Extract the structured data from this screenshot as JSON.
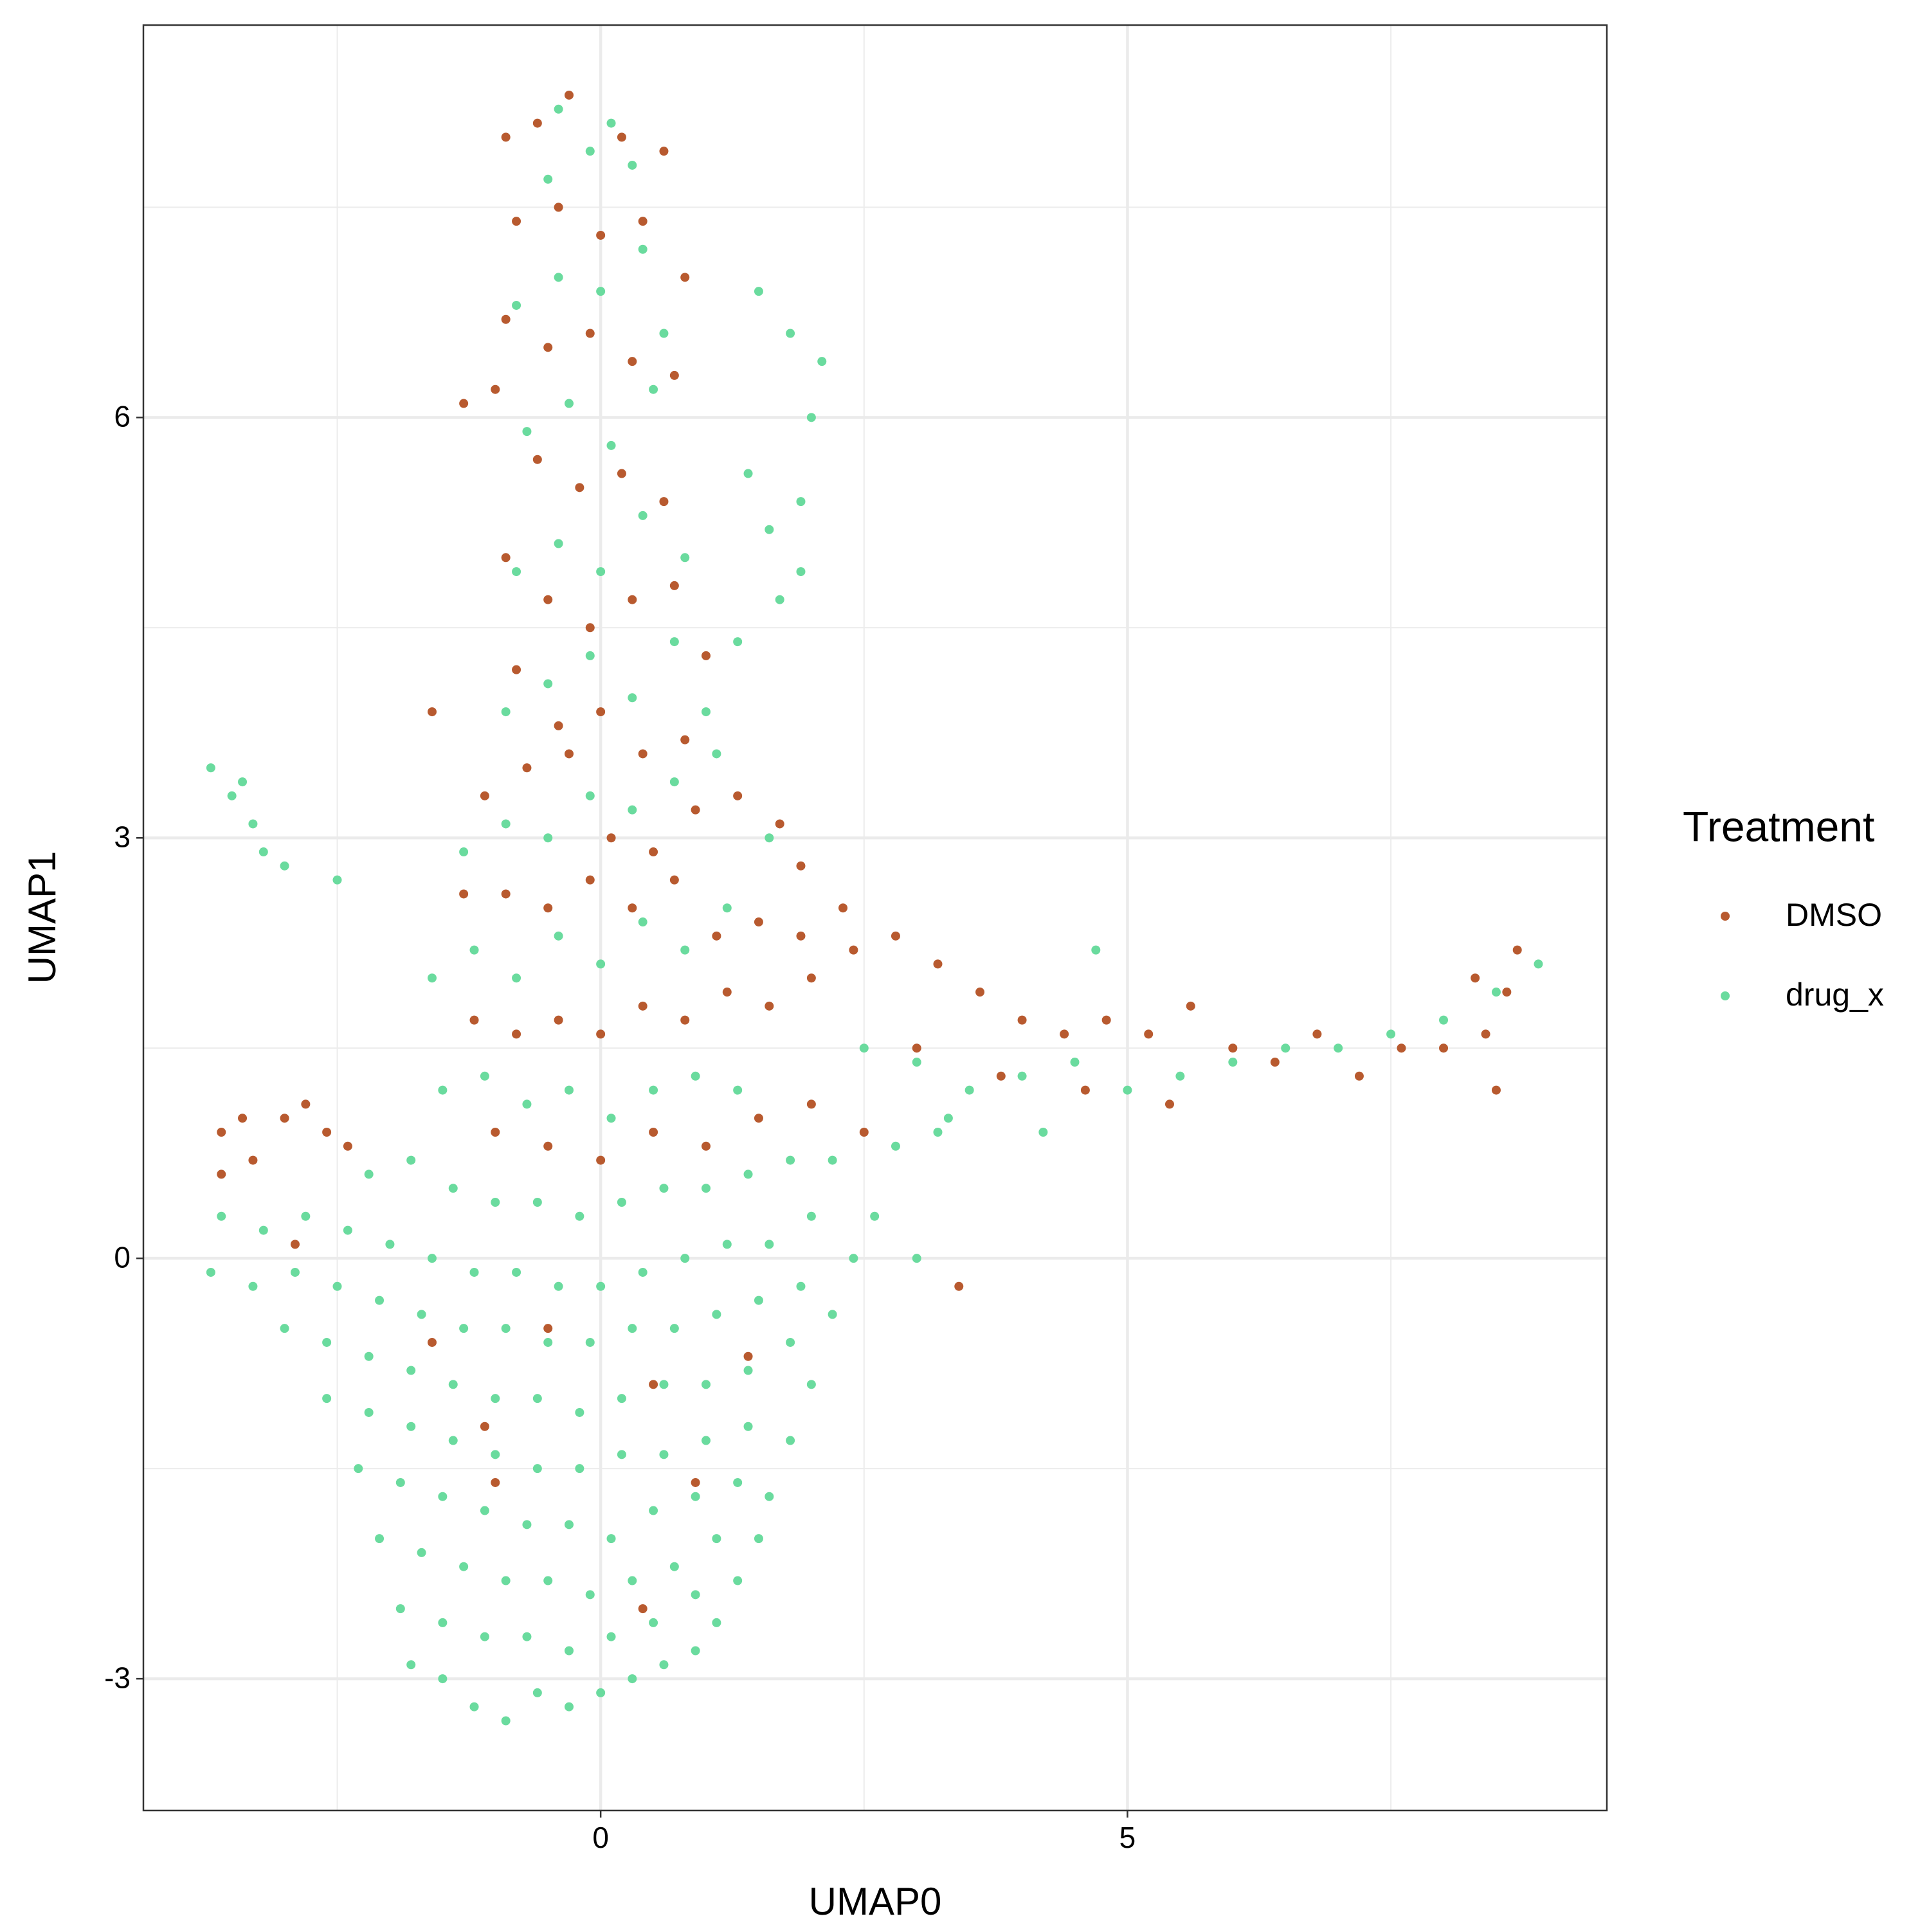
{
  "chart_data": {
    "type": "scatter",
    "x_label": "UMAP0",
    "y_label": "UMAP1",
    "legend_title": "Treatment",
    "legend": "right",
    "grid": true,
    "xlim": [
      -4.34,
      9.55
    ],
    "ylim": [
      -3.94,
      8.8
    ],
    "xticks": [
      0,
      5
    ],
    "yticks": [
      -3,
      0,
      3,
      6
    ],
    "xminor": [
      -2.5,
      2.5,
      7.5
    ],
    "yminor": [
      -1.5,
      1.5,
      4.5,
      7.5
    ],
    "series": [
      {
        "name": "DMSO",
        "color": "#b85a2f",
        "x": [
          -0.9,
          -0.6,
          -0.3,
          0.2,
          0.6,
          -0.8,
          -0.4,
          0,
          0.4,
          0.8,
          -0.9,
          -0.5,
          -0.1,
          0.3,
          0.7,
          -1.3,
          -1.0,
          -0.6,
          -0.2,
          0.2,
          0.6,
          -0.9,
          -0.5,
          -0.1,
          0.3,
          0.7,
          1.0,
          -0.8,
          -0.4,
          0,
          0.4,
          0.8,
          -1.6,
          -1.1,
          -0.7,
          -0.3,
          0.1,
          0.5,
          0.9,
          1.3,
          1.7,
          1.9,
          -1.3,
          -0.9,
          -0.5,
          -0.1,
          0.3,
          0.7,
          1.1,
          1.5,
          1.9,
          2.3,
          -1.2,
          -0.8,
          -0.4,
          0,
          0.4,
          0.8,
          1.2,
          1.6,
          2.0,
          2.4,
          -1.0,
          -0.5,
          0,
          0.5,
          1.0,
          1.5,
          2.0,
          2.5,
          2.8,
          3.2,
          3.6,
          4.0,
          4.4,
          4.8,
          5.2,
          5.6,
          6.0,
          6.4,
          6.8,
          7.2,
          7.6,
          8.0,
          8.4,
          8.6,
          8.7,
          8.3,
          8.5,
          3.0,
          3.8,
          4.6,
          5.4,
          -3.6,
          -3.6,
          -3.3,
          -3.0,
          -2.8,
          -2.6,
          -2.4,
          -3.4,
          -0.5,
          -1.1,
          0.5,
          -1.6,
          0.9,
          0.4,
          -1.0,
          1.4,
          -2.9,
          3.4
        ],
        "y": [
          8.0,
          8.1,
          8.3,
          8.0,
          7.9,
          7.4,
          7.5,
          7.3,
          7.4,
          7.0,
          6.7,
          6.5,
          6.6,
          6.4,
          6.3,
          6.1,
          6.2,
          5.7,
          5.5,
          5.6,
          5.4,
          5.0,
          4.7,
          4.5,
          4.7,
          4.8,
          4.3,
          4.2,
          3.8,
          3.9,
          3.6,
          3.7,
          3.9,
          3.3,
          3.5,
          3.6,
          3.0,
          2.9,
          3.2,
          3.3,
          3.1,
          2.8,
          2.6,
          2.6,
          2.5,
          2.7,
          2.5,
          2.7,
          2.3,
          2.4,
          2.3,
          2.5,
          1.7,
          1.6,
          1.7,
          1.6,
          1.8,
          1.7,
          1.9,
          1.8,
          2.0,
          2.2,
          0.9,
          0.8,
          0.7,
          0.9,
          0.8,
          1.0,
          1.1,
          0.9,
          2.3,
          2.1,
          1.9,
          1.7,
          1.6,
          1.7,
          1.6,
          1.8,
          1.5,
          1.4,
          1.6,
          1.3,
          1.5,
          1.5,
          1.6,
          1.9,
          2.2,
          2.0,
          1.2,
          1.5,
          1.3,
          1.2,
          1.1,
          0.9,
          0.6,
          0.7,
          1.0,
          1.1,
          0.9,
          0.8,
          1.0,
          -0.5,
          -1.2,
          -0.9,
          -0.6,
          -1.6,
          -2.5,
          -1.6,
          -0.7,
          0.1,
          -0.2
        ]
      },
      {
        "name": "drug_x",
        "color": "#6adb9e",
        "x": [
          -1.8,
          -1.5,
          -1.2,
          -0.9,
          -0.6,
          -0.3,
          0,
          0.3,
          0.6,
          0.9,
          1.1,
          -1.9,
          -1.5,
          -1.1,
          -0.7,
          -0.3,
          0.1,
          0.5,
          0.9,
          1.3,
          1.5,
          -2.1,
          -1.7,
          -1.3,
          -0.9,
          -0.5,
          -0.1,
          0.3,
          0.7,
          1.1,
          1.6,
          -2.3,
          -1.9,
          -1.5,
          -1.1,
          -0.7,
          -0.3,
          0.1,
          0.5,
          0.9,
          1.3,
          1.8,
          -2.6,
          -2.2,
          -1.8,
          -1.4,
          -1.0,
          -0.6,
          -0.2,
          0.2,
          0.6,
          1.0,
          1.4,
          2.0,
          -3.0,
          -2.6,
          -2.2,
          -1.8,
          -1.4,
          -1.0,
          -0.6,
          -0.2,
          0.2,
          0.6,
          1.0,
          1.4,
          1.8,
          2.2,
          -3.7,
          -3.3,
          -2.9,
          -2.5,
          -2.1,
          -1.7,
          -1.3,
          -0.9,
          -0.5,
          -0.1,
          0.3,
          0.7,
          1.1,
          1.5,
          1.9,
          2.4,
          -3.6,
          -3.2,
          -2.8,
          -2.4,
          -2.0,
          -1.6,
          -1.2,
          -0.8,
          -0.4,
          0,
          0.4,
          0.8,
          1.2,
          1.6,
          2.0,
          2.6,
          3.0,
          -2.2,
          -1.8,
          -1.4,
          -1.0,
          -0.6,
          -0.2,
          0.2,
          0.6,
          1.0,
          1.4,
          1.8,
          2.2,
          2.8,
          3.3,
          -1.5,
          -1.1,
          -0.7,
          -0.3,
          0.1,
          0.5,
          0.9,
          1.3,
          -1.6,
          -1.2,
          -0.8,
          -0.4,
          0,
          0.4,
          0.8,
          1.2,
          -1.3,
          -0.9,
          -0.5,
          -0.1,
          0.3,
          0.7,
          1.1,
          1.6,
          -0.9,
          -0.5,
          -0.1,
          0.3,
          0.7,
          1.0,
          -0.8,
          -0.4,
          0,
          0.4,
          0.8,
          -0.7,
          -0.3,
          0.1,
          0.5,
          -0.8,
          -0.4,
          0,
          0.4,
          0.6,
          -0.5,
          -0.1,
          0.3,
          -0.4,
          0.1,
          1.4,
          1.6,
          1.9,
          2.0,
          2.1,
          1.8,
          1.5,
          1.7,
          1.9,
          1.3,
          2.5,
          3.0,
          3.5,
          4.0,
          4.5,
          5.0,
          5.5,
          6.0,
          6.5,
          7.0,
          7.5,
          8.0,
          8.5,
          8.9,
          4.7,
          3.2,
          4.2,
          -3.7,
          -3.5,
          -3.3,
          -3.2,
          -3.0,
          -3.4,
          -2.5
        ],
        "y": [
          -2.9,
          -3.0,
          -3.2,
          -3.3,
          -3.1,
          -3.2,
          -3.1,
          -3.0,
          -2.9,
          -2.8,
          -2.6,
          -2.5,
          -2.6,
          -2.7,
          -2.7,
          -2.8,
          -2.7,
          -2.6,
          -2.4,
          -2.3,
          -2.0,
          -2.0,
          -2.1,
          -2.2,
          -2.3,
          -2.3,
          -2.4,
          -2.3,
          -2.2,
          -2.0,
          -1.7,
          -1.5,
          -1.6,
          -1.7,
          -1.8,
          -1.9,
          -1.9,
          -2.0,
          -1.8,
          -1.7,
          -1.6,
          -1.3,
          -1.0,
          -1.1,
          -1.2,
          -1.3,
          -1.4,
          -1.5,
          -1.5,
          -1.4,
          -1.4,
          -1.3,
          -1.2,
          -0.9,
          -0.5,
          -0.6,
          -0.7,
          -0.8,
          -0.9,
          -1.0,
          -1.0,
          -1.1,
          -1.0,
          -0.9,
          -0.9,
          -0.8,
          -0.6,
          -0.4,
          -0.1,
          -0.2,
          -0.1,
          -0.2,
          -0.3,
          -0.4,
          -0.5,
          -0.5,
          -0.6,
          -0.6,
          -0.5,
          -0.5,
          -0.4,
          -0.3,
          -0.2,
          0.0,
          0.3,
          0.2,
          0.3,
          0.2,
          0.1,
          0.0,
          -0.1,
          -0.1,
          -0.2,
          -0.2,
          -0.1,
          0.0,
          0.1,
          0.1,
          0.3,
          0.3,
          0.0,
          0.6,
          0.7,
          0.5,
          0.4,
          0.4,
          0.3,
          0.4,
          0.5,
          0.5,
          0.6,
          0.7,
          0.7,
          0.8,
          1.0,
          1.2,
          1.3,
          1.1,
          1.2,
          1.0,
          1.2,
          1.3,
          1.2,
          2.0,
          2.2,
          2.0,
          2.3,
          2.1,
          2.4,
          2.2,
          2.5,
          2.9,
          3.1,
          3.0,
          3.3,
          3.2,
          3.4,
          3.6,
          3.0,
          3.9,
          4.1,
          4.3,
          4.0,
          4.4,
          3.9,
          4.9,
          5.1,
          4.9,
          5.3,
          5.0,
          5.9,
          6.1,
          5.8,
          6.2,
          6.8,
          7.0,
          6.9,
          7.2,
          6.6,
          7.7,
          7.9,
          7.8,
          8.2,
          8.1,
          5.6,
          5.2,
          5.4,
          6.0,
          6.4,
          6.6,
          6.9,
          4.7,
          4.9,
          4.4,
          1.5,
          1.4,
          1.2,
          1.3,
          1.4,
          1.2,
          1.3,
          1.4,
          1.5,
          1.5,
          1.6,
          1.7,
          1.9,
          2.1,
          2.2,
          0.9,
          0.9,
          3.5,
          3.3,
          3.1,
          2.9,
          2.8,
          3.4,
          2.7
        ]
      }
    ]
  }
}
